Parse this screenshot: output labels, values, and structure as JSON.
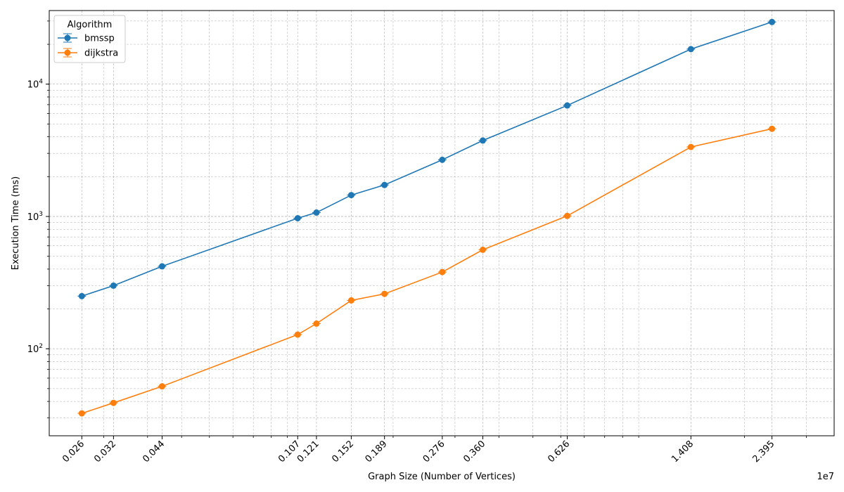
{
  "chart_data": {
    "type": "line",
    "xscale": "log",
    "yscale": "log",
    "xlabel": "Graph Size (Number of Vertices)",
    "ylabel": "Execution Time (ms)",
    "x_offset_text": "1e7",
    "xlim": [
      210000,
      36000000
    ],
    "ylim": [
      22,
      36000
    ],
    "grid": true,
    "legend": {
      "title": "Algorithm",
      "placement": "top-left"
    },
    "x": [
      260000,
      320000,
      440000,
      1070000,
      1210000,
      1520000,
      1890000,
      2760000,
      3600000,
      6260000,
      14080000,
      23950000
    ],
    "x_tick_labels": [
      "0.026",
      "0.032",
      "0.044",
      "0.107",
      "0.121",
      "0.152",
      "0.189",
      "0.276",
      "0.360",
      "0.626",
      "1.408",
      "2.395"
    ],
    "y_ticks": [
      100,
      1000,
      10000
    ],
    "y_tick_labels": [
      {
        "base": "10",
        "exp": "2"
      },
      {
        "base": "10",
        "exp": "3"
      },
      {
        "base": "10",
        "exp": "4"
      }
    ],
    "series": [
      {
        "name": "bmssp",
        "color": "#1f77b4",
        "values": [
          250,
          300,
          420,
          970,
          1070,
          1450,
          1730,
          2680,
          3750,
          6900,
          18400,
          29500
        ]
      },
      {
        "name": "dijkstra",
        "color": "#ff7f0e",
        "values": [
          32.5,
          39,
          52,
          128,
          155,
          232,
          260,
          380,
          560,
          1010,
          3350,
          4600
        ]
      }
    ]
  }
}
